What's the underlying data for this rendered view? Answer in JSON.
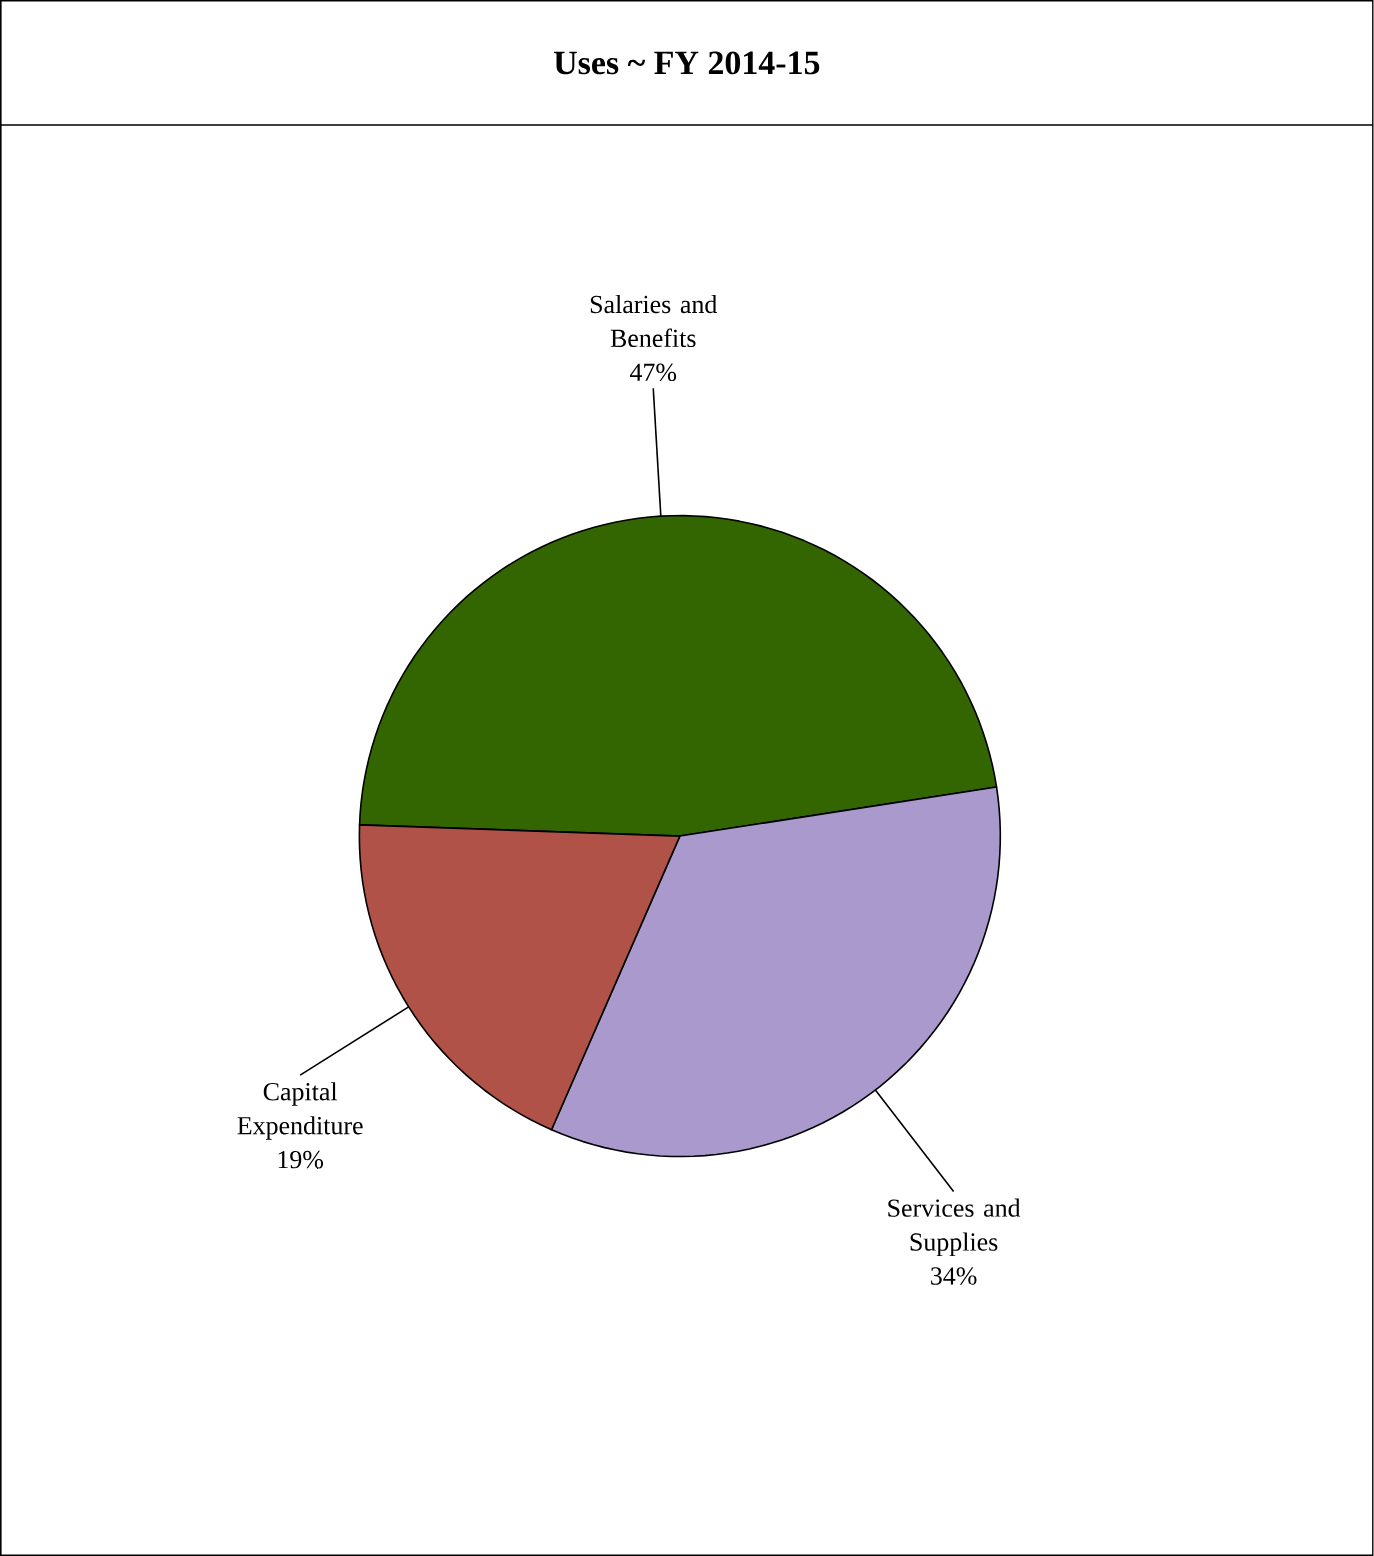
{
  "chart_data": {
    "type": "pie",
    "title": "Uses ~ FY 2014-15",
    "categories": [
      "Salaries and Benefits",
      "Services and Supplies",
      "Capital Expenditure"
    ],
    "values": [
      47,
      34,
      19
    ],
    "value_labels": [
      "47%",
      "34%",
      "19%"
    ],
    "colors": [
      "#336600",
      "#aa99cc",
      "#b05248"
    ]
  }
}
